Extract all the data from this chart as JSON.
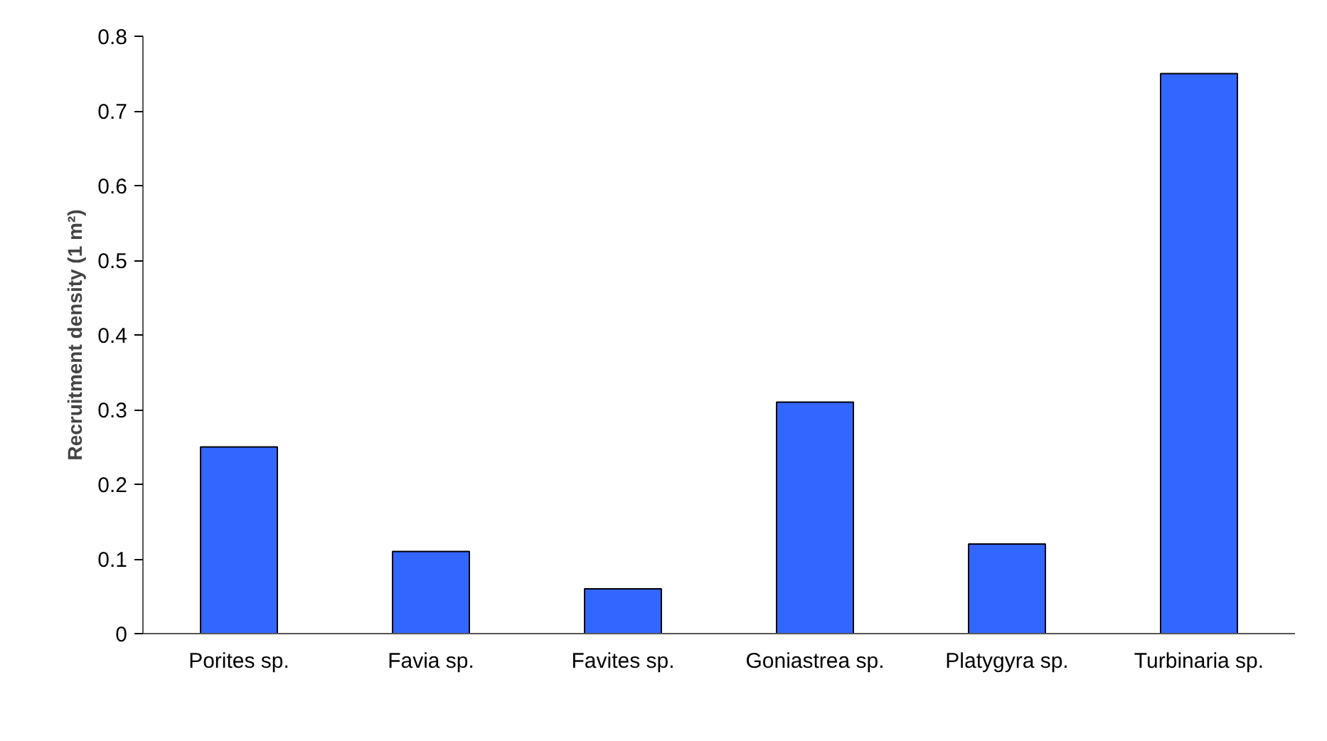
{
  "chart_data": {
    "type": "bar",
    "ylabel": "Recruitment density (1 m²)",
    "categories": [
      "Porites sp.",
      "Favia sp.",
      "Favites sp.",
      "Goniastrea sp.",
      "Platygyra sp.",
      "Turbinaria sp."
    ],
    "values": [
      0.25,
      0.11,
      0.06,
      0.31,
      0.12,
      0.75
    ],
    "color": "#3366ff",
    "ylim": [
      0,
      0.8
    ],
    "yticks": [
      0,
      0.1,
      0.2,
      0.3,
      0.4,
      0.5,
      0.6,
      0.7,
      0.8
    ]
  }
}
